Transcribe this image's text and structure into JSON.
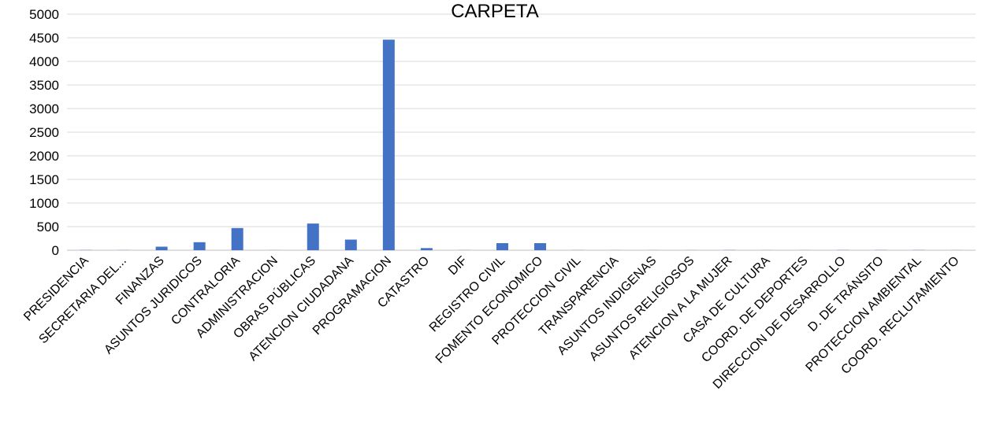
{
  "chart_data": {
    "type": "bar",
    "title": "CARPETA",
    "xlabel": "",
    "ylabel": "",
    "ylim": [
      0,
      5000
    ],
    "y_ticks": [
      0,
      500,
      1000,
      1500,
      2000,
      2500,
      3000,
      3500,
      4000,
      4500,
      5000
    ],
    "grid": true,
    "legend": "none",
    "bar_color": "#4472c4",
    "categories": [
      "PRESIDENCIA",
      "SECRETARIA DEL...",
      "FINANZAS",
      "ASUNTOS JURIDICOS",
      "CONTRALORIA",
      "ADMINISTRACION",
      "OBRAS PÚBLICAS",
      "ATENCION CIUDADANA",
      "PROGRAMACION",
      "CATASTRO",
      "DIF",
      "REGISTRO CIVIL",
      "FOMENTO ECONOMICO",
      "PROTECCION CIVIL",
      "TRANSPARENCIA",
      "ASUNTOS INDIGENAS",
      "ASUNTOS RELIGIOSOS",
      "ATENCION A LA MUJER",
      "CASA DE CULTURA",
      "COORD. DE DEPORTES",
      "DIRECCION DE DESARROLLO",
      "D.  DE TRÁNSITO",
      "PROTECCION AMBIENTAL",
      "COORD. RECLUTAMIENTO"
    ],
    "values": [
      5,
      3,
      75,
      170,
      470,
      2,
      565,
      225,
      4460,
      45,
      3,
      150,
      150,
      3,
      2,
      2,
      2,
      5,
      2,
      2,
      5,
      5,
      5,
      2
    ]
  }
}
